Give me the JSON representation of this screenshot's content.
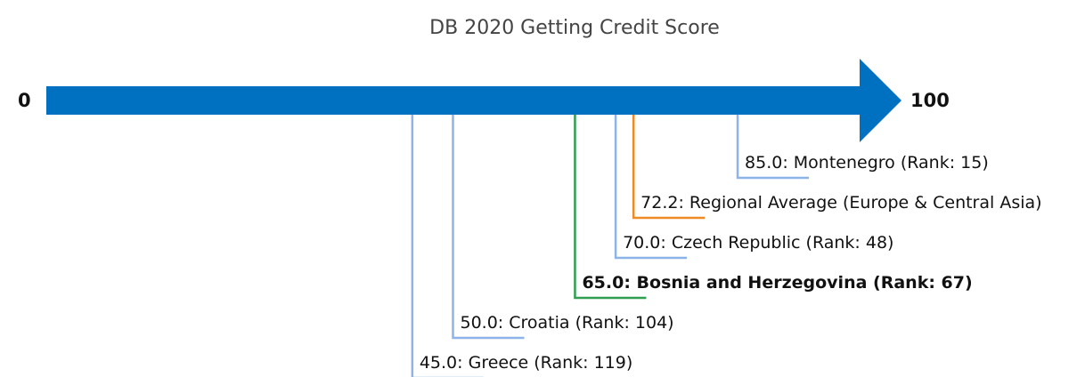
{
  "chart_data": {
    "type": "arrow",
    "title": "DB 2020 Getting Credit Score",
    "values": [
      45.0,
      50.0,
      65.0,
      70.0,
      72.2,
      85.0
    ],
    "value_labels": [
      "45.0: Greece (Rank: 119)",
      "50.0: Croatia (Rank: 104)",
      "65.0: Bosnia and Herzegovina (Rank: 67)",
      "70.0: Czech Republic (Rank: 48)",
      "72.2: Regional Average (Europe & Central Asia)",
      "85.0: Montenegro (Rank: 15)"
    ],
    "colors": [
      "#8db4e8",
      "#8db4e8",
      "#2e9e4f",
      "#8db4e8",
      "#f08a24",
      "#8db4e8"
    ],
    "highlight": 2,
    "arrow_color": "#0070c0",
    "xlim": [
      0,
      100
    ],
    "xticks": [
      0,
      100
    ]
  }
}
